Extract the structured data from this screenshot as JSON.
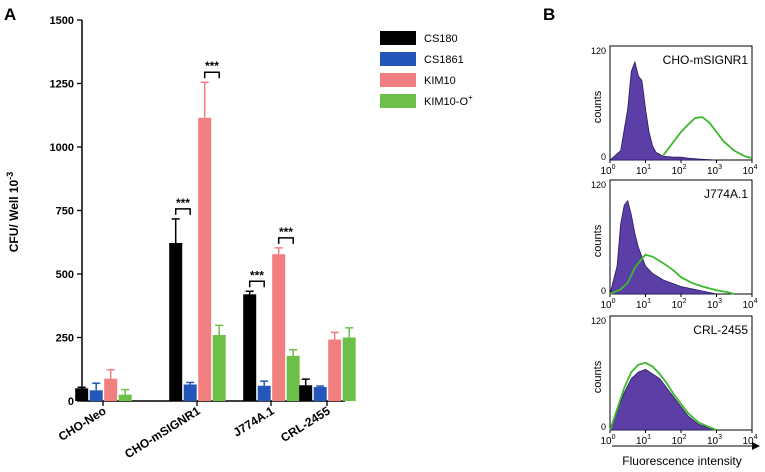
{
  "panel_a": {
    "label": "A",
    "chart_data": {
      "type": "bar",
      "title": "",
      "xlabel": "",
      "ylabel": "CFU/ Well",
      "ylabel_exp": "10",
      "ylabel_sup": "-3",
      "ylim": [
        0,
        1500
      ],
      "yticks": [
        0,
        250,
        500,
        750,
        1000,
        1250,
        1500
      ],
      "ytick_labels": [
        "0",
        "250",
        "500",
        "750",
        "1000",
        "1250",
        "1500"
      ],
      "categories": [
        "CHO-Neo",
        "CHO-mSIGNR1",
        "J774A.1",
        "CRL-2455"
      ],
      "series": [
        {
          "name": "CS180",
          "color": "#000000",
          "values": [
            50,
            622,
            420,
            62
          ],
          "errors": [
            4,
            95,
            12,
            24
          ]
        },
        {
          "name": "CS1861",
          "color": "#2455b8",
          "values": [
            42,
            65,
            60,
            55
          ],
          "errors": [
            28,
            8,
            18,
            4
          ]
        },
        {
          "name": "KIM10",
          "color": "#f27f80",
          "values": [
            88,
            1115,
            578,
            242
          ],
          "errors": [
            35,
            140,
            25,
            28
          ]
        },
        {
          "name": "KIM10-O",
          "name_sup": "+",
          "color": "#6cc04a",
          "values": [
            25,
            260,
            178,
            250
          ],
          "errors": [
            20,
            38,
            24,
            38
          ]
        }
      ],
      "significance": [
        {
          "category": 1,
          "series": [
            0,
            1
          ],
          "label": "***"
        },
        {
          "category": 1,
          "series": [
            2,
            3
          ],
          "label": "***"
        },
        {
          "category": 2,
          "series": [
            0,
            1
          ],
          "label": "***"
        },
        {
          "category": 2,
          "series": [
            2,
            3
          ],
          "label": "***"
        }
      ],
      "legend": "top-right"
    }
  },
  "panel_b": {
    "label": "B",
    "xlabel": "Fluorescence intensity",
    "chart_data": [
      {
        "type": "area",
        "title": "CHO-mSIGNR1",
        "ylabel": "counts",
        "ytick_labels": [
          "0",
          "120"
        ],
        "ylim": [
          0,
          120
        ],
        "xlim_log10": [
          0,
          4
        ],
        "xtick_labels": [
          "10",
          "10",
          "10",
          "10",
          "10"
        ],
        "xtick_exps": [
          "0",
          "1",
          "2",
          "3",
          "4"
        ],
        "filled_series": {
          "color": "#5b3fa6",
          "x_log10": [
            0,
            0.3,
            0.5,
            0.6,
            0.7,
            0.8,
            0.9,
            1.0,
            1.1,
            1.2,
            1.3,
            1.5,
            1.8,
            2.0,
            2.2,
            2.5,
            3.0
          ],
          "y": [
            0,
            10,
            55,
            95,
            105,
            90,
            85,
            55,
            30,
            15,
            8,
            4,
            3,
            3,
            2,
            1,
            0
          ]
        },
        "line_series": {
          "color": "#3cb82c",
          "x_log10": [
            1.5,
            1.8,
            2.0,
            2.2,
            2.4,
            2.6,
            2.8,
            3.0,
            3.2,
            3.5,
            3.8,
            4.0
          ],
          "y": [
            5,
            20,
            30,
            38,
            45,
            46,
            40,
            30,
            20,
            10,
            4,
            2
          ]
        }
      },
      {
        "type": "area",
        "title": "J774A.1",
        "ylabel": "counts",
        "ytick_labels": [
          "0",
          "120"
        ],
        "ylim": [
          0,
          120
        ],
        "xlim_log10": [
          0,
          4
        ],
        "xtick_labels": [
          "10",
          "10",
          "10",
          "10",
          "10"
        ],
        "xtick_exps": [
          "0",
          "1",
          "2",
          "3",
          "4"
        ],
        "filled_series": {
          "color": "#5b3fa6",
          "x_log10": [
            0,
            0.2,
            0.3,
            0.4,
            0.5,
            0.6,
            0.7,
            0.8,
            0.9,
            1.0,
            1.2,
            1.5,
            2.0,
            2.5,
            3.0
          ],
          "y": [
            0,
            30,
            75,
            95,
            100,
            85,
            65,
            50,
            40,
            30,
            22,
            15,
            8,
            4,
            0
          ]
        },
        "line_series": {
          "color": "#3cb82c",
          "x_log10": [
            0,
            0.3,
            0.5,
            0.7,
            0.9,
            1.0,
            1.2,
            1.5,
            1.8,
            2.0,
            2.3,
            2.6,
            3.0,
            3.3,
            3.5
          ],
          "y": [
            0,
            5,
            12,
            28,
            38,
            42,
            40,
            33,
            25,
            18,
            12,
            8,
            4,
            2,
            0
          ]
        }
      },
      {
        "type": "area",
        "title": "CRL-2455",
        "ylabel": "counts",
        "ytick_labels": [
          "0",
          "120"
        ],
        "ylim": [
          0,
          120
        ],
        "xlim_log10": [
          0,
          4
        ],
        "xtick_labels": [
          "10",
          "10",
          "10",
          "10",
          "10"
        ],
        "xtick_exps": [
          "0",
          "1",
          "2",
          "3",
          "4"
        ],
        "filled_series": {
          "color": "#5b3fa6",
          "x_log10": [
            0,
            0.2,
            0.4,
            0.6,
            0.8,
            1.0,
            1.2,
            1.4,
            1.6,
            1.8,
            2.0,
            2.2,
            2.5,
            2.8,
            3.0
          ],
          "y": [
            0,
            20,
            40,
            55,
            62,
            65,
            60,
            55,
            45,
            35,
            25,
            15,
            6,
            2,
            0
          ]
        },
        "line_series": {
          "color": "#3cb82c",
          "x_log10": [
            0,
            0.2,
            0.4,
            0.6,
            0.8,
            1.0,
            1.2,
            1.4,
            1.6,
            1.8,
            2.0,
            2.2,
            2.5,
            2.8,
            3.0
          ],
          "y": [
            0,
            22,
            45,
            62,
            70,
            72,
            68,
            60,
            50,
            38,
            28,
            18,
            8,
            3,
            0
          ]
        }
      }
    ]
  }
}
